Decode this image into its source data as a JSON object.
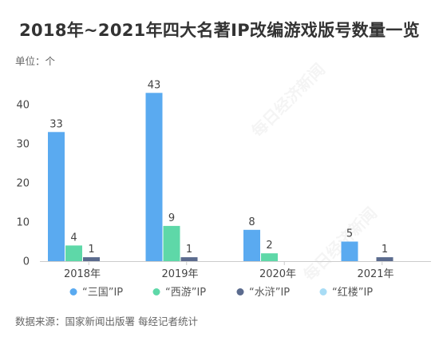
{
  "title": "2018年~2021年四大名著IP改编游戏版号数量一览",
  "unit_label": "单位：个",
  "source": "数据来源：国家新闻出版署 每经记者统计",
  "watermark": "每日经济新闻",
  "chart_data": {
    "type": "bar",
    "title": "2018年~2021年四大名著IP改编游戏版号数量一览",
    "categories": [
      "2018年",
      "2019年",
      "2020年",
      "2021年"
    ],
    "series": [
      {
        "name": "“三国”IP",
        "color": "#5aaaf0",
        "values": [
          33,
          43,
          8,
          5
        ]
      },
      {
        "name": "“西游”IP",
        "color": "#5ed8a8",
        "values": [
          4,
          9,
          2,
          0
        ]
      },
      {
        "name": "“水浒”IP",
        "color": "#5b6b8e",
        "values": [
          1,
          1,
          0,
          1
        ]
      },
      {
        "name": "“红楼”IP",
        "color": "#a8dcf5",
        "values": [
          0,
          0,
          0,
          0
        ]
      }
    ],
    "ylim": [
      0,
      45
    ],
    "yticks": [
      0,
      10,
      20,
      30,
      40
    ],
    "grid": false,
    "legend": "bottom"
  }
}
